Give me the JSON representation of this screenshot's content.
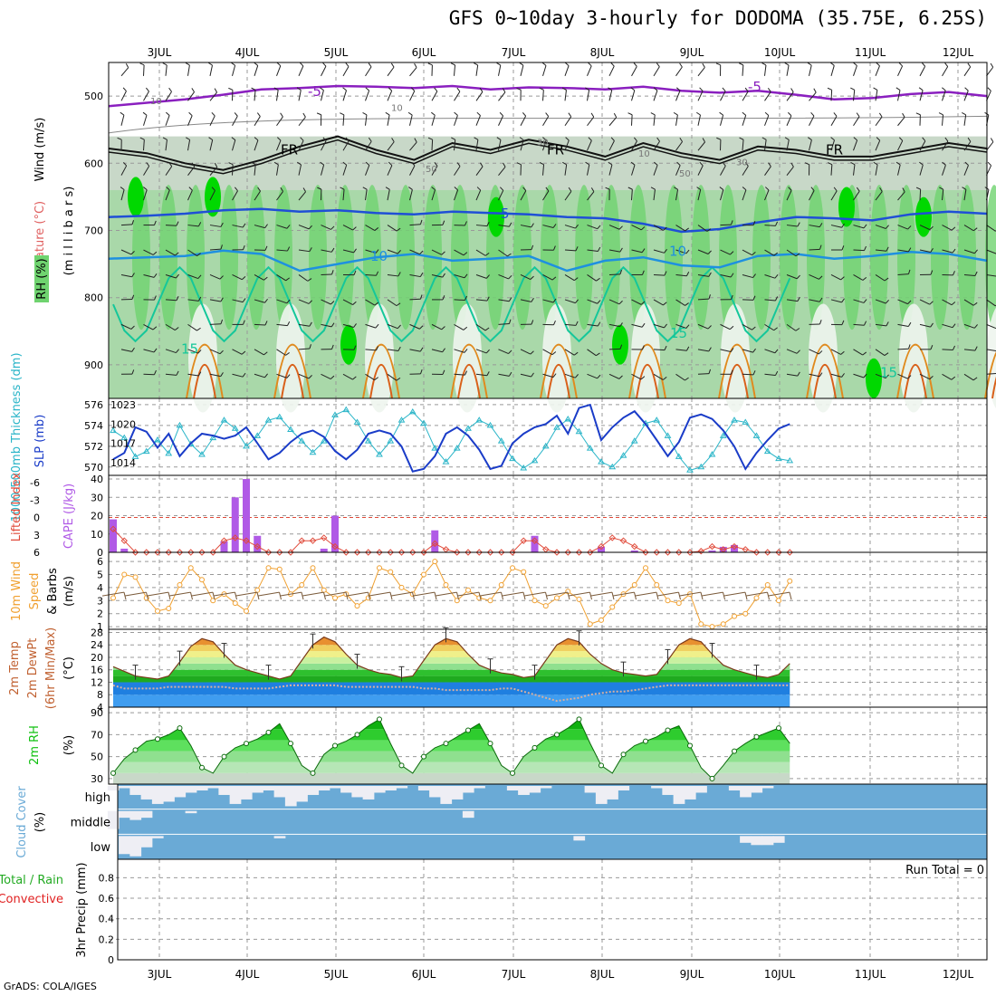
{
  "title": "GFS 0~10day 3-hourly for DODOMA (35.75E, 6.25S)",
  "credit": "GrADS: COLA/IGES",
  "colors": {
    "temp_neg": "#8a1fbf",
    "temp_freeze": "#111111",
    "temp_5": "#1f4fd6",
    "temp_10": "#1e90e0",
    "temp_15": "#15c79a",
    "temp_warm": "#e08a1e",
    "rh_dark": "#00d800",
    "rh_mid": "#6fd36f",
    "rh_light": "#c8d8c8",
    "thickness": "#2ab5c8",
    "slp": "#1a3cc8",
    "cape": "#b05ae6",
    "lifted": "#e04a3a",
    "wind_speed": "#f0a030",
    "rh2m": "#10c010",
    "cloud": "#6aaad6",
    "precip_label_total": "#22aa22",
    "precip_label_conv": "#e02020"
  },
  "chart_data": [
    {
      "type": "heatmap",
      "panel": "upper-air",
      "ylabel_wind": "Wind (m/s)",
      "ylabel_temp": "Temperature (°C)",
      "ylabel_rh": "RH (%)",
      "ylabel_pressure": "(m i l l i b a r s)",
      "y_ticks": [
        "500",
        "600",
        "700",
        "800",
        "900"
      ],
      "x_dates": [
        "3JUL",
        "4JUL",
        "5JUL",
        "6JUL",
        "7JUL",
        "8JUL",
        "9JUL",
        "10JUL",
        "11JUL",
        "12JUL"
      ],
      "ylim": [
        450,
        950
      ],
      "contour_labels": [
        "-5",
        "-5",
        "FR",
        "FR",
        "FR",
        "5",
        "10",
        "10",
        "15",
        "15",
        "15",
        "10",
        "10",
        "30",
        "50",
        "50",
        "10",
        "30"
      ],
      "isotherms": [
        {
          "name": "-5",
          "mb": [
            515,
            510,
            505,
            498,
            490,
            488,
            485,
            486,
            488,
            485,
            490,
            487,
            488,
            490,
            486,
            492,
            495,
            492,
            498,
            505,
            503,
            497,
            494,
            500
          ]
        },
        {
          "name": "FR",
          "mb": [
            578,
            585,
            600,
            610,
            595,
            575,
            560,
            580,
            595,
            570,
            580,
            565,
            575,
            590,
            570,
            585,
            595,
            575,
            580,
            590,
            590,
            580,
            570,
            578
          ]
        },
        {
          "name": "5",
          "mb": [
            680,
            678,
            675,
            670,
            668,
            672,
            670,
            674,
            676,
            672,
            674,
            676,
            680,
            682,
            690,
            702,
            698,
            688,
            680,
            682,
            685,
            676,
            672,
            675
          ]
        },
        {
          "name": "10",
          "mb": [
            742,
            740,
            738,
            730,
            735,
            760,
            750,
            740,
            735,
            745,
            742,
            738,
            760,
            745,
            740,
            752,
            755,
            738,
            735,
            742,
            738,
            732,
            735,
            745
          ]
        }
      ]
    },
    {
      "type": "line",
      "panel": "thickness-slp",
      "ylabel_left": "1000-500mb Thickness (dm)",
      "ylabel_right": "SLP (mb)",
      "y_ticks_left": [
        "570",
        "572",
        "574",
        "576"
      ],
      "y_ticks_right": [
        "1014",
        "1017",
        "1020",
        "1023"
      ],
      "ylim_left": [
        569.2,
        576.6
      ],
      "ylim_right": [
        1012,
        1024
      ],
      "series": [
        {
          "name": "thickness",
          "axis": "left",
          "values": [
            573.5,
            572.8,
            571.0,
            571.5,
            572.6,
            571.3,
            574.0,
            572.2,
            571.2,
            572.8,
            574.5,
            573.7,
            572.0,
            573.0,
            574.5,
            574.8,
            573.6,
            572.5,
            571.4,
            572.5,
            575.0,
            575.5,
            574.3,
            572.5,
            571.2,
            572.5,
            574.5,
            575.3,
            574.2,
            571.8,
            570.5,
            571.8,
            573.7,
            574.5,
            574.0,
            572.5,
            570.8,
            569.9,
            570.6,
            572.0,
            573.8,
            574.6,
            573.4,
            571.8,
            570.5,
            570.0,
            571.1,
            572.5,
            574.2,
            574.5,
            573.0,
            571.0,
            569.7,
            570.0,
            571.2,
            573.0,
            574.5,
            574.3,
            573.0,
            571.5,
            570.8,
            570.6
          ]
        },
        {
          "name": "slp",
          "axis": "right",
          "values": [
            1014.5,
            1015.5,
            1019.5,
            1018.8,
            1016.3,
            1018.5,
            1015.0,
            1017.0,
            1018.5,
            1018.2,
            1017.7,
            1018.2,
            1019.5,
            1017.0,
            1014.5,
            1015.5,
            1017.2,
            1018.5,
            1019.0,
            1018.0,
            1015.8,
            1014.5,
            1016.0,
            1018.5,
            1019.0,
            1018.5,
            1016.5,
            1012.6,
            1013.0,
            1015.0,
            1018.5,
            1019.5,
            1018.2,
            1016.0,
            1013.0,
            1013.5,
            1017.0,
            1018.5,
            1019.5,
            1020.0,
            1021.3,
            1018.5,
            1022.5,
            1023.0,
            1017.5,
            1019.5,
            1021.0,
            1022.0,
            1020.0,
            1017.5,
            1015.0,
            1017.2,
            1021.0,
            1021.5,
            1020.8,
            1019.0,
            1016.5,
            1013.0,
            1015.5,
            1017.5,
            1019.3,
            1020.0
          ]
        }
      ]
    },
    {
      "type": "bar",
      "panel": "cape-li",
      "ylabel_left": "Lifted Index",
      "ylabel_right": "CAPE (J/kg)",
      "y_ticks_left": [
        "6",
        "3",
        "0",
        "-3",
        "-6"
      ],
      "y_ticks_right": [
        "0",
        "10",
        "20",
        "30",
        "40"
      ],
      "ylim_right": [
        0,
        42
      ],
      "series": [
        {
          "name": "CAPE",
          "axis": "right",
          "values": [
            18,
            2,
            0,
            0,
            0,
            0,
            0,
            0,
            0,
            0,
            6,
            30,
            40,
            9,
            0,
            0,
            0,
            0,
            0,
            2,
            20,
            0,
            0,
            0,
            0,
            0,
            0,
            0,
            0,
            12,
            0,
            0,
            0,
            0,
            0,
            0,
            0,
            0,
            9,
            0,
            0,
            0,
            0,
            0,
            3,
            0,
            0,
            1,
            0,
            0,
            0,
            0,
            0,
            0,
            1,
            3,
            4,
            0,
            0,
            0,
            0,
            0
          ]
        },
        {
          "name": "Lifted Index",
          "axis": "left",
          "values": [
            2,
            4,
            6,
            6,
            6,
            6,
            6,
            6,
            6,
            6,
            4,
            3.5,
            4,
            5,
            6,
            6,
            6,
            4,
            4,
            3.5,
            5,
            6,
            6,
            6,
            6,
            6,
            6,
            6,
            6,
            4.5,
            5.5,
            6,
            6,
            6,
            6,
            6,
            6,
            4,
            4,
            5.5,
            6,
            6,
            6,
            6,
            5,
            3.5,
            4,
            5,
            6,
            6,
            6,
            6,
            6,
            5.8,
            5,
            5.5,
            5,
            5.5,
            6,
            6,
            6,
            6
          ]
        }
      ]
    },
    {
      "type": "line",
      "panel": "wind10m",
      "ylabel": "10m Wind Speed & Barbs (m/s)",
      "y_ticks": [
        "1",
        "2",
        "3",
        "4",
        "5",
        "6"
      ],
      "ylim": [
        0.8,
        6.7
      ],
      "series": [
        {
          "name": "speed",
          "values": [
            3.2,
            5.0,
            4.8,
            3.2,
            2.2,
            2.4,
            4.2,
            5.5,
            4.6,
            3.0,
            3.5,
            2.8,
            2.2,
            3.8,
            5.5,
            5.4,
            3.5,
            4.2,
            5.5,
            3.8,
            3.2,
            3.5,
            2.6,
            3.2,
            5.5,
            5.2,
            4.0,
            3.5,
            5.0,
            6.0,
            4.2,
            3.0,
            3.8,
            3.2,
            3.0,
            4.2,
            5.5,
            5.2,
            3.0,
            2.6,
            3.2,
            3.7,
            3.1,
            1.2,
            1.5,
            2.5,
            3.5,
            4.2,
            5.5,
            4.2,
            3.0,
            2.8,
            3.5,
            1.2,
            1.0,
            1.2,
            1.8,
            2.0,
            3.2,
            4.2,
            3.0,
            4.5
          ]
        }
      ]
    },
    {
      "type": "area",
      "panel": "temp2m",
      "ylabel": "2m Temp 2m DewPt (6hr Min/Max) (°C)",
      "y_ticks": [
        "4",
        "8",
        "12",
        "16",
        "20",
        "24",
        "28"
      ],
      "ylim": [
        4,
        29
      ],
      "series": [
        {
          "name": "temp",
          "values": [
            17,
            15.5,
            14,
            13.5,
            13,
            14,
            18.5,
            23.5,
            26,
            25,
            21,
            17.5,
            16,
            15,
            14,
            13,
            14,
            19,
            24,
            26.5,
            25,
            21,
            17.5,
            16,
            15,
            14.5,
            13.5,
            14,
            19,
            24,
            26,
            25,
            21,
            17.5,
            16,
            15,
            14.5,
            13.5,
            14,
            19,
            24,
            26,
            25,
            21,
            18,
            16,
            15,
            14.5,
            14,
            14.5,
            19,
            24,
            26,
            25,
            21,
            17.5,
            16,
            15,
            14,
            13.5,
            14.5,
            18
          ]
        },
        {
          "name": "dewpoint",
          "values": [
            11,
            10,
            10,
            10,
            10,
            10.5,
            10.5,
            10.5,
            10.5,
            10.5,
            10.5,
            10,
            10,
            10,
            10,
            10.5,
            11,
            11,
            11,
            11,
            11,
            10.5,
            10.5,
            10.5,
            10.5,
            10.5,
            10.5,
            10.5,
            10,
            10,
            9.5,
            9.5,
            9.5,
            9.5,
            9.5,
            10,
            10,
            9,
            8,
            7,
            6,
            6.5,
            7,
            8,
            8.5,
            9,
            9,
            9.5,
            10,
            10.5,
            11,
            11,
            11,
            11,
            11,
            11,
            11,
            11,
            11,
            11,
            11,
            11
          ]
        }
      ]
    },
    {
      "type": "area",
      "panel": "rh2m",
      "ylabel": "2m RH (%)",
      "y_ticks": [
        "30",
        "50",
        "70",
        "90"
      ],
      "ylim": [
        25,
        95
      ],
      "series": [
        {
          "name": "rh",
          "values": [
            35,
            48,
            56,
            64,
            66,
            70,
            76,
            60,
            40,
            35,
            50,
            58,
            62,
            66,
            72,
            80,
            62,
            42,
            35,
            52,
            60,
            64,
            70,
            78,
            84,
            62,
            42,
            35,
            50,
            58,
            62,
            68,
            74,
            80,
            62,
            42,
            35,
            50,
            58,
            66,
            70,
            76,
            84,
            62,
            42,
            35,
            52,
            60,
            64,
            68,
            74,
            78,
            60,
            40,
            30,
            42,
            55,
            62,
            68,
            72,
            76,
            62
          ]
        }
      ]
    },
    {
      "type": "area",
      "panel": "cloud",
      "ylabel": "Cloud Cover (%)",
      "y_ticks": [
        "high",
        "middle",
        "low"
      ],
      "series": [
        {
          "name": "high",
          "values": [
            0.2,
            0.1,
            0.4,
            0.6,
            0.8,
            0.7,
            0.5,
            0.3,
            0.2,
            0.1,
            0.4,
            0.8,
            0.6,
            0.3,
            0.2,
            0.5,
            0.9,
            0.7,
            0.4,
            0.2,
            0.1,
            0.3,
            0.5,
            0.6,
            0.3,
            0.2,
            0.1,
            0.0,
            0.2,
            0.5,
            0.8,
            0.6,
            0.3,
            0.1,
            0.0,
            0.0,
            0.2,
            0.4,
            0.3,
            0.1,
            0.0,
            0.0,
            0.0,
            0.3,
            0.8,
            0.6,
            0.2,
            0.0,
            0.0,
            0.1,
            0.4,
            0.8,
            0.6,
            0.3,
            0.0,
            0.0,
            0.2,
            0.5,
            0.3,
            0.1,
            0.0,
            0.0
          ]
        },
        {
          "name": "middle",
          "values": [
            0.8,
            0.3,
            0.4,
            0.3,
            0.0,
            0.0,
            0.0,
            0.1,
            0.0,
            0.0,
            0.0,
            0.0,
            0.0,
            0.0,
            0.0,
            0.0,
            0.0,
            0.0,
            0.0,
            0.0,
            0.0,
            0.0,
            0.0,
            0.0,
            0.0,
            0.0,
            0.0,
            0.0,
            0.0,
            0.0,
            0.0,
            0.0,
            0.3,
            0.0,
            0.0,
            0.0,
            0.0,
            0.0,
            0.0,
            0.0,
            0.0,
            0.0,
            0.0,
            0.0,
            0.0,
            0.0,
            0.0,
            0.0,
            0.0,
            0.0,
            0.0,
            0.0,
            0.0,
            0.0,
            0.0,
            0.0,
            0.0,
            0.0,
            0.0,
            0.0,
            0.0,
            0.0
          ]
        },
        {
          "name": "low",
          "values": [
            0.0,
            0.8,
            0.9,
            0.5,
            0.1,
            0.0,
            0.0,
            0.0,
            0.0,
            0.0,
            0.0,
            0.0,
            0.0,
            0.0,
            0.0,
            0.1,
            0.0,
            0.0,
            0.0,
            0.0,
            0.0,
            0.0,
            0.0,
            0.0,
            0.0,
            0.0,
            0.0,
            0.0,
            0.0,
            0.0,
            0.0,
            0.0,
            0.0,
            0.0,
            0.0,
            0.0,
            0.0,
            0.0,
            0.0,
            0.0,
            0.0,
            0.0,
            0.2,
            0.0,
            0.0,
            0.0,
            0.0,
            0.0,
            0.0,
            0.0,
            0.0,
            0.0,
            0.0,
            0.0,
            0.0,
            0.0,
            0.0,
            0.3,
            0.4,
            0.4,
            0.3,
            0.0
          ]
        }
      ]
    },
    {
      "type": "line",
      "panel": "precip",
      "ylabel_total": "Total / Rain",
      "ylabel_conv": "Convective",
      "ylabel_axis": "3hr Precip (mm)",
      "y_ticks": [
        "0",
        "0.2",
        "0.4",
        "0.6",
        "0.8"
      ],
      "ylim": [
        0,
        0.98
      ],
      "run_total_label": "Run Total = 0",
      "series": [
        {
          "name": "precip",
          "values": [
            0,
            0,
            0,
            0,
            0,
            0,
            0,
            0,
            0,
            0
          ]
        }
      ]
    }
  ]
}
